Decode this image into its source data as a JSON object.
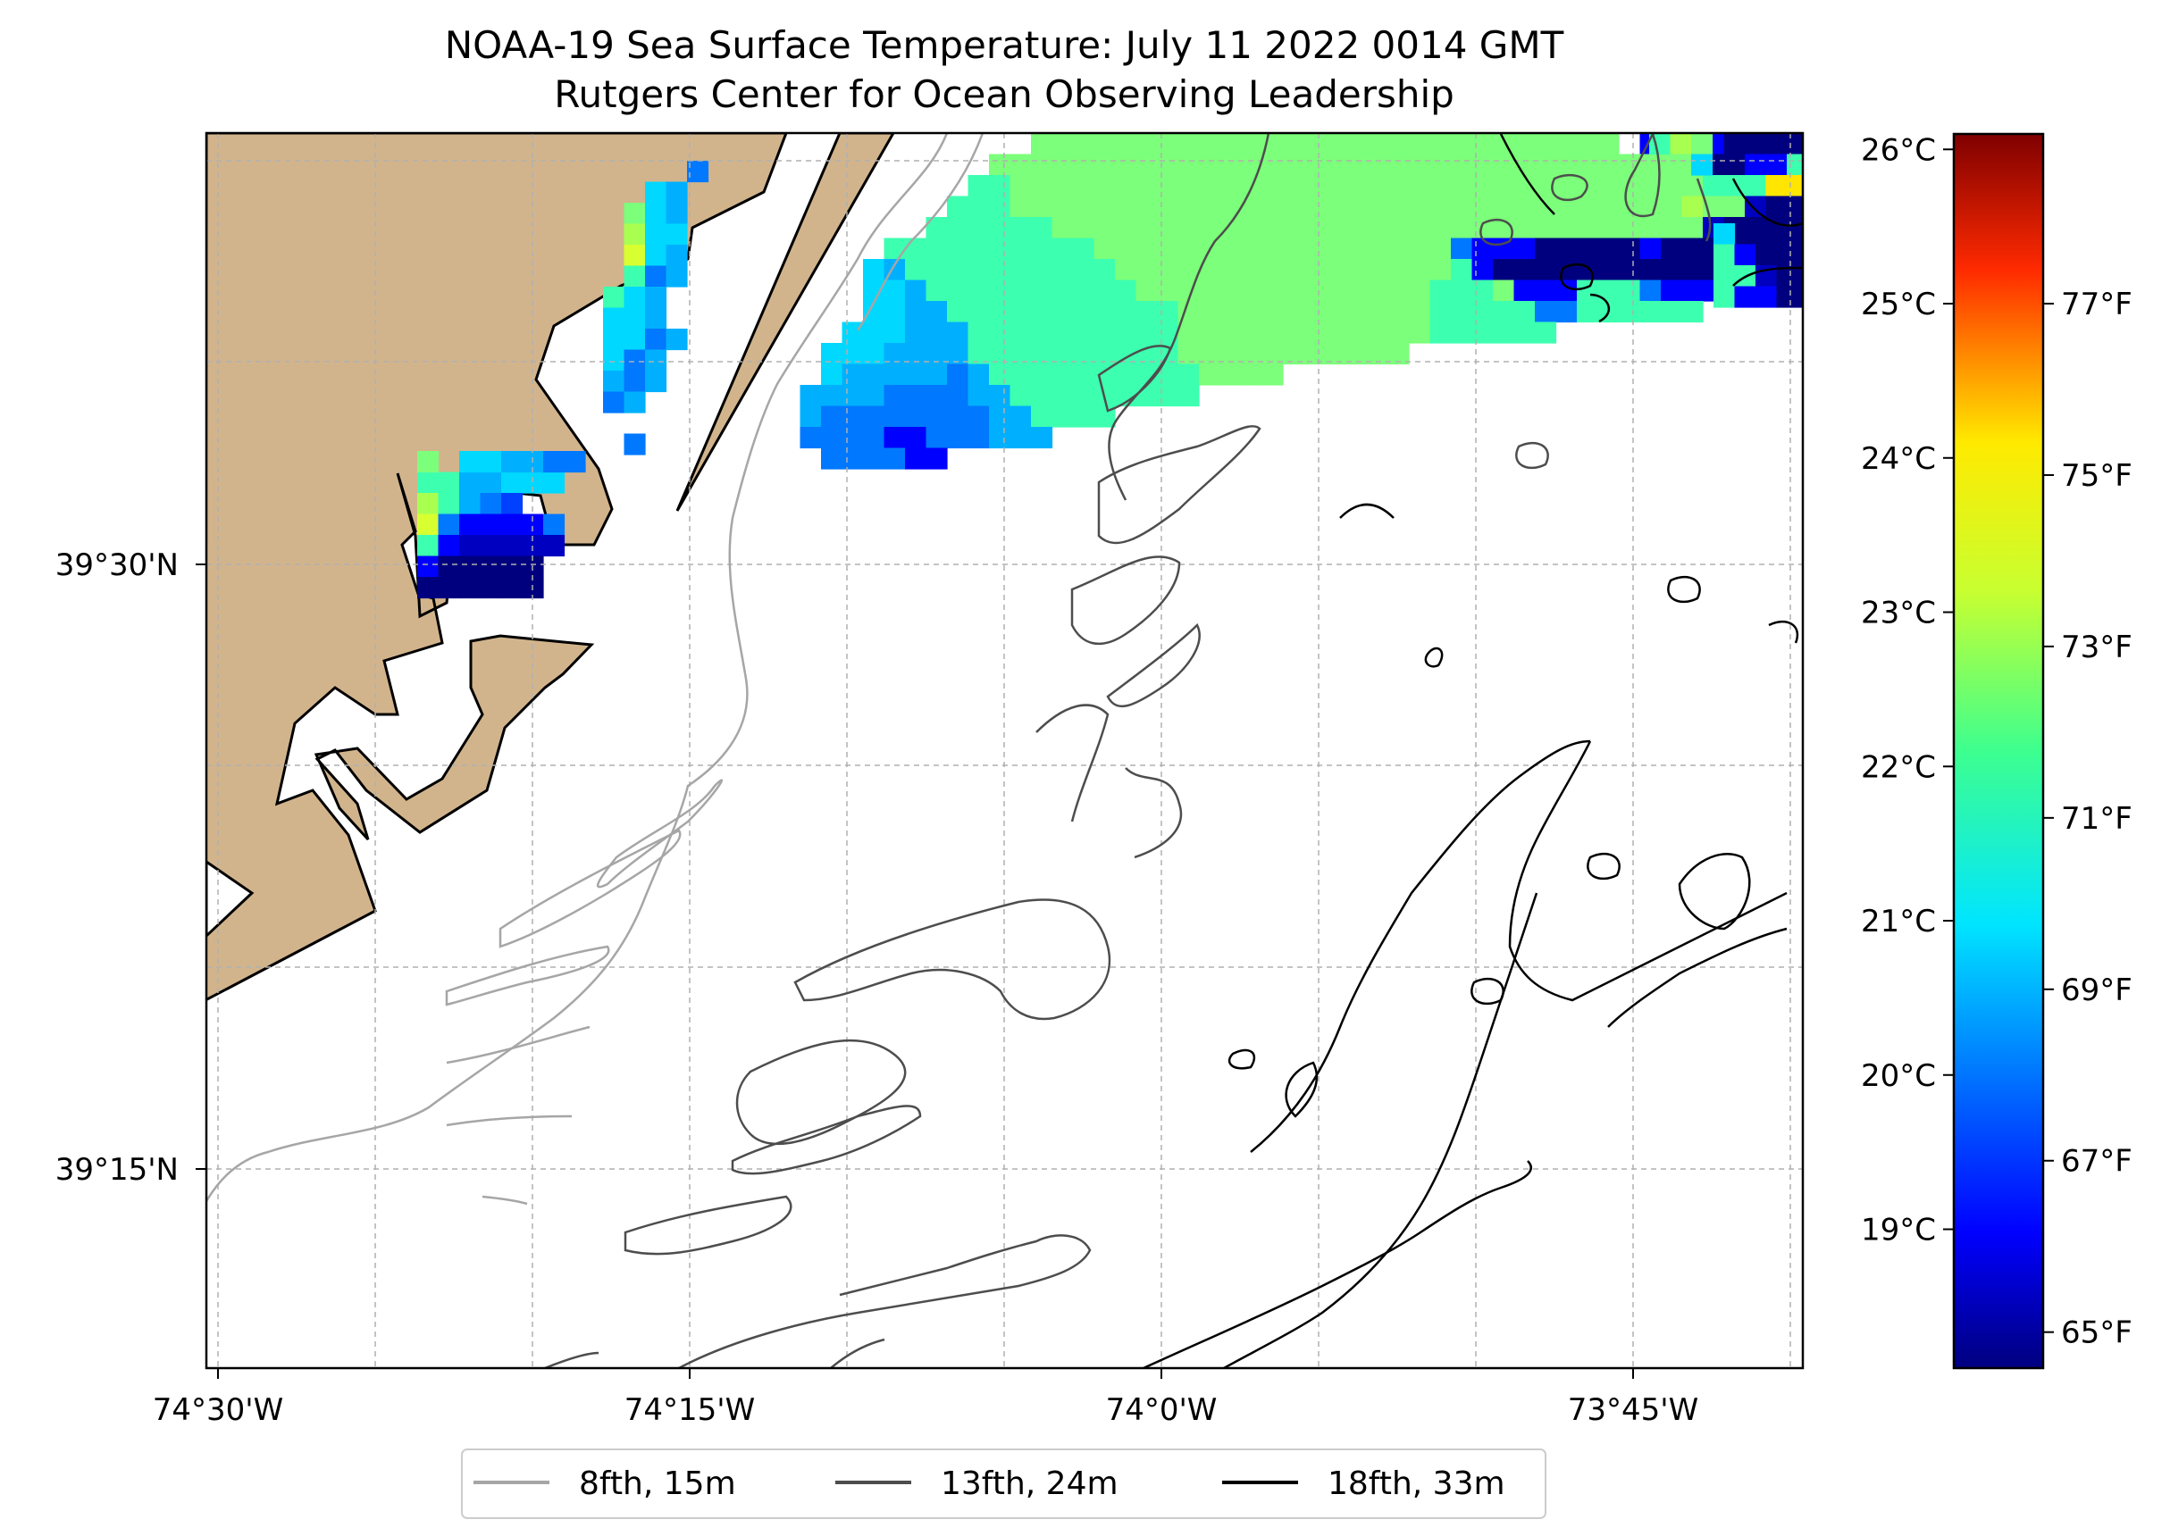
{
  "title_line1": "NOAA-19 Sea Surface Temperature: July 11 2022 0014 GMT",
  "title_line2": "Rutgers Center for Ocean Observing Leadership",
  "lon_ticks": [
    "74°30'W",
    "74°15'W",
    "74°0'W",
    "73°45'W"
  ],
  "lat_ticks": [
    "39°30'N",
    "39°15'N"
  ],
  "colorbar": {
    "celsius_ticks": [
      "26°C",
      "25°C",
      "24°C",
      "23°C",
      "22°C",
      "21°C",
      "20°C",
      "19°C"
    ],
    "fahrenheit_ticks": [
      "77°F",
      "75°F",
      "73°F",
      "71°F",
      "69°F",
      "67°F",
      "65°F"
    ],
    "colormap": "jet",
    "range_c": [
      18.1,
      26.1
    ]
  },
  "legend": [
    {
      "label": "8fth, 15m",
      "color": "#a6a6a6"
    },
    {
      "label": "13fth, 24m",
      "color": "#4d4d4d"
    },
    {
      "label": "18fth, 33m",
      "color": "#000000"
    }
  ],
  "colors": {
    "land": "#d2b48c",
    "grid": "#b0b0b0"
  }
}
